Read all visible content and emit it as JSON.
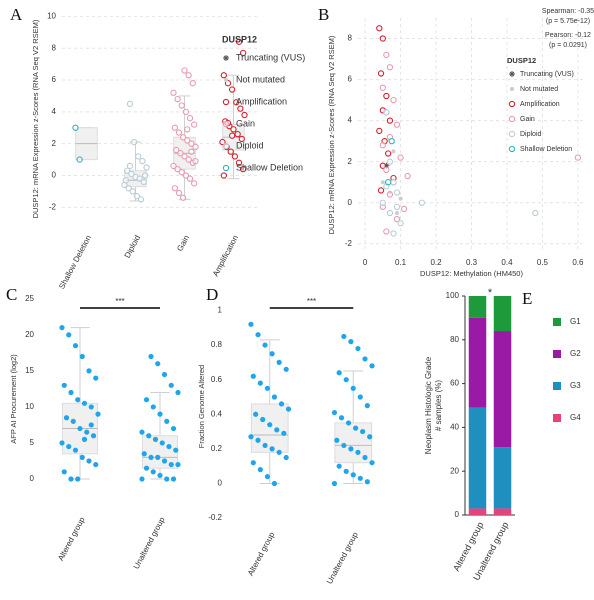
{
  "chart_data": [
    {
      "type": "box",
      "panel": "A",
      "ylabel": "DUSP12: mRNA Expression z-Scores (RNA Seq V2 RSEM)",
      "categories": [
        "Shallow Deletion",
        "Diploid",
        "Gain",
        "Amplification"
      ],
      "colors": [
        "#2ab3c4",
        "#b9ccd8",
        "#e89ab0",
        "#d4202c"
      ],
      "point_style": "open",
      "grid": true,
      "ylim": [
        -3.3,
        10.4
      ],
      "yticks": [
        -2,
        0,
        2,
        4,
        6,
        8,
        10
      ],
      "boxes": [
        {
          "whislo": 1,
          "q1": 1,
          "med": 2,
          "q3": 3,
          "whishi": 3
        },
        {
          "whislo": -1.6,
          "q1": -0.7,
          "med": -0.3,
          "q3": 0.3,
          "whishi": 2.1
        },
        {
          "whislo": -1.5,
          "q1": 0.4,
          "med": 1.4,
          "q3": 2.4,
          "whishi": 5.0
        },
        {
          "whislo": -0.2,
          "q1": 1.6,
          "med": 2.4,
          "q3": 3.2,
          "whishi": 6.3
        }
      ],
      "points": [
        [
          3,
          1
        ],
        [
          4.5,
          2.1,
          1.2,
          0.9,
          0.5,
          0.3,
          0.1,
          -0.1,
          -0.2,
          -0.4,
          -0.6,
          -0.8,
          -1.0,
          -1.3,
          -1.5,
          0.0,
          -0.3,
          0.6
        ],
        [
          6.6,
          6.3,
          5.8,
          5.2,
          4.8,
          4.4,
          4.0,
          3.6,
          3.2,
          3.0,
          2.7,
          2.4,
          2.2,
          2.0,
          1.8,
          1.6,
          1.4,
          1.2,
          1.0,
          0.8,
          0.6,
          0.4,
          0.2,
          0.0,
          -0.2,
          -0.5,
          -0.8,
          -1.1,
          -1.4,
          2.9,
          1.5,
          0.9
        ],
        [
          8.4,
          7.7,
          6.3,
          5.8,
          5.4,
          4.6,
          4.2,
          3.8,
          3.4,
          3.1,
          2.9,
          2.6,
          2.3,
          2.1,
          1.8,
          1.5,
          1.2,
          0.8,
          0.4,
          0.0,
          3.3,
          2.5
        ]
      ],
      "legend": {
        "title": "DUSP12",
        "items": [
          {
            "name": "Truncating (VUS)",
            "color": "#555555",
            "marker": "star"
          },
          {
            "name": "Not mutated",
            "color": "#cccccc",
            "marker": "dot"
          },
          {
            "name": "Amplification",
            "color": "#d4202c",
            "marker": "circle"
          },
          {
            "name": "Gain",
            "color": "#e89ab0",
            "marker": "circle"
          },
          {
            "name": "Diploid",
            "color": "#b9ccd8",
            "marker": "circle"
          },
          {
            "name": "Shallow Deletion",
            "color": "#2ab3c4",
            "marker": "circle"
          }
        ]
      }
    },
    {
      "type": "scatter",
      "panel": "B",
      "xlabel": "DUSP12: Methylation (HM450)",
      "ylabel": "DUSP12: mRNA Expression z-Scores (RNA Seq V2 RSEM)",
      "xlim": [
        -0.02,
        0.62
      ],
      "xticks": [
        0,
        0.1,
        0.2,
        0.3,
        0.4,
        0.5,
        0.6
      ],
      "ylim": [
        -2.4,
        9
      ],
      "yticks": [
        -2,
        0,
        2,
        4,
        6,
        8
      ],
      "grid": true,
      "annotations": [
        "Spearman: -0.35",
        "(p = 5.75e-12)",
        "Pearson: -0.12",
        "(p = 0.0291)"
      ],
      "legend_title": "DUSP12",
      "series": [
        {
          "name": "Truncating (VUS)",
          "color": "#555555",
          "marker": "star",
          "x": [
            0.06
          ],
          "values": [
            1.8
          ]
        },
        {
          "name": "Not mutated",
          "color": "#cccccc",
          "marker": "dot",
          "x": [
            0.07,
            0.09,
            0.08,
            0.05,
            0.1
          ],
          "values": [
            0.5,
            -0.5,
            2.5,
            1.0,
            0.2
          ]
        },
        {
          "name": "Amplification",
          "color": "#d4202c",
          "marker": "circle",
          "x": [
            0.04,
            0.05,
            0.045,
            0.06,
            0.05,
            0.07,
            0.04,
            0.055,
            0.065,
            0.05,
            0.08,
            0.045
          ],
          "values": [
            8.5,
            8.0,
            6.3,
            5.2,
            4.5,
            4.0,
            3.5,
            3.0,
            2.4,
            1.8,
            1.2,
            0.6
          ]
        },
        {
          "name": "Gain",
          "color": "#e89ab0",
          "marker": "circle",
          "x": [
            0.06,
            0.07,
            0.05,
            0.08,
            0.06,
            0.09,
            0.07,
            0.05,
            0.1,
            0.06,
            0.08,
            0.12,
            0.07,
            0.05,
            0.09,
            0.6,
            0.11,
            0.06
          ],
          "values": [
            7.2,
            6.6,
            5.6,
            5.0,
            4.4,
            3.8,
            3.2,
            2.8,
            2.2,
            1.6,
            1.0,
            1.3,
            0.4,
            -0.2,
            -0.8,
            2.2,
            -0.3,
            -1.4
          ]
        },
        {
          "name": "Diploid",
          "color": "#b9ccd8",
          "marker": "circle",
          "x": [
            0.06,
            0.07,
            0.08,
            0.09,
            0.05,
            0.07,
            0.1,
            0.08,
            0.16,
            0.48,
            0.06,
            0.09
          ],
          "values": [
            4.4,
            2.0,
            1.0,
            0.5,
            0.0,
            -0.5,
            -1.0,
            -1.5,
            0.0,
            -0.5,
            0.8,
            -0.2
          ]
        },
        {
          "name": "Shallow Deletion",
          "color": "#2ab3c4",
          "marker": "circle",
          "x": [
            0.075,
            0.065
          ],
          "values": [
            3.0,
            1.0
          ]
        }
      ]
    },
    {
      "type": "box",
      "panel": "C",
      "ylabel": "AFP AI Procurement (log2)",
      "significance": "***",
      "categories": [
        "Altered group",
        "Unaltered group"
      ],
      "colors": [
        "#1ea5ec",
        "#1ea5ec"
      ],
      "point_style": "filled",
      "grid": false,
      "ylim": [
        -4.3,
        26.5
      ],
      "yticks": [
        0,
        5,
        10,
        15,
        20,
        25
      ],
      "boxes": [
        {
          "whislo": 0,
          "q1": 3.5,
          "med": 7,
          "q3": 10.5,
          "whishi": 21
        },
        {
          "whislo": 0,
          "q1": 1.5,
          "med": 3,
          "q3": 6,
          "whishi": 12
        }
      ],
      "points": [
        [
          21,
          20,
          18.5,
          17,
          15,
          14,
          13,
          12,
          11,
          10.5,
          10,
          9,
          8.5,
          8,
          7,
          6.5,
          6,
          5,
          4.5,
          4,
          3,
          2.5,
          2,
          1,
          0,
          0,
          5.5,
          7.5
        ],
        [
          17,
          16,
          14.5,
          13,
          12,
          11,
          10,
          9,
          8,
          7,
          6.5,
          6,
          5.5,
          5,
          4.5,
          4,
          3.5,
          3,
          3,
          2.5,
          2,
          2,
          1.5,
          1,
          0.5,
          0,
          0,
          0
        ]
      ]
    },
    {
      "type": "box",
      "panel": "D",
      "ylabel": "Fraction Genome Altered",
      "significance": "***",
      "categories": [
        "Altered group",
        "Unaltered group"
      ],
      "colors": [
        "#1ea5ec",
        "#1ea5ec"
      ],
      "point_style": "filled",
      "grid": false,
      "ylim": [
        -0.24,
        1.13
      ],
      "yticks": [
        -0.2,
        0,
        0.2,
        0.4,
        0.6,
        0.8,
        1
      ],
      "boxes": [
        {
          "whislo": 0,
          "q1": 0.18,
          "med": 0.28,
          "q3": 0.46,
          "whishi": 0.83
        },
        {
          "whislo": 0,
          "q1": 0.12,
          "med": 0.22,
          "q3": 0.35,
          "whishi": 0.65
        }
      ],
      "points": [
        [
          0.92,
          0.86,
          0.8,
          0.75,
          0.7,
          0.66,
          0.62,
          0.58,
          0.55,
          0.5,
          0.46,
          0.43,
          0.4,
          0.37,
          0.34,
          0.31,
          0.29,
          0.27,
          0.25,
          0.22,
          0.2,
          0.18,
          0.15,
          0.12,
          0.08,
          0.04,
          0
        ],
        [
          0.85,
          0.82,
          0.78,
          0.72,
          0.68,
          0.64,
          0.6,
          0.55,
          0.5,
          0.45,
          0.41,
          0.38,
          0.35,
          0.32,
          0.3,
          0.27,
          0.25,
          0.22,
          0.2,
          0.18,
          0.15,
          0.12,
          0.1,
          0.07,
          0.05,
          0.03,
          0.01,
          0
        ]
      ]
    },
    {
      "type": "stacked_bar",
      "panel": "E",
      "ylabel": [
        "Neoplasm Histologic Grade",
        "# samples (%)"
      ],
      "significance": "*",
      "categories": [
        "Altered group",
        "Unaltered group"
      ],
      "ylim": [
        0,
        100
      ],
      "yticks": [
        0,
        20,
        40,
        60,
        80,
        100
      ],
      "series": [
        {
          "name": "G1",
          "color": "#1e9a3a",
          "values": [
            10,
            16
          ]
        },
        {
          "name": "G2",
          "color": "#9a1aa6",
          "values": [
            41,
            53
          ]
        },
        {
          "name": "G3",
          "color": "#1f8fc0",
          "values": [
            46,
            28
          ]
        },
        {
          "name": "G4",
          "color": "#e2457e",
          "values": [
            3,
            3
          ]
        }
      ]
    }
  ]
}
